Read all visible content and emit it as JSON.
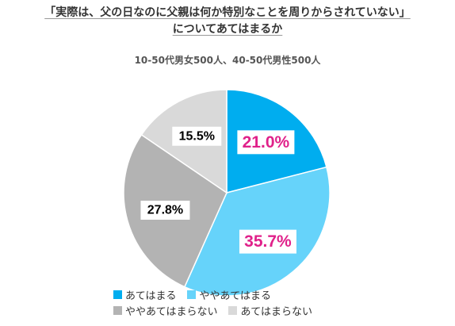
{
  "chart_data": {
    "type": "pie",
    "title_line1": "「実際は、父の日なのに父親は何か特別なことを周りからされていない」",
    "title_line2": "についてあてはまるか",
    "subtitle": "10-50代男女500人、40-50代男性500人",
    "slices": [
      {
        "label": "あてはまる",
        "value": 21.0,
        "display": "21.0%",
        "color": "#00adef",
        "label_color": "#e0218a"
      },
      {
        "label": "ややあてはまる",
        "value": 35.7,
        "display": "35.7%",
        "color": "#66d3fa",
        "label_color": "#e0218a"
      },
      {
        "label": "ややあてはまらない",
        "value": 27.8,
        "display": "27.8%",
        "color": "#b3b3b3",
        "label_color": "#000000"
      },
      {
        "label": "あてはまらない",
        "value": 15.5,
        "display": "15.5%",
        "color": "#d9d9d9",
        "label_color": "#000000"
      }
    ],
    "legend_placement": "bottom",
    "border_color": "#ffffff"
  }
}
